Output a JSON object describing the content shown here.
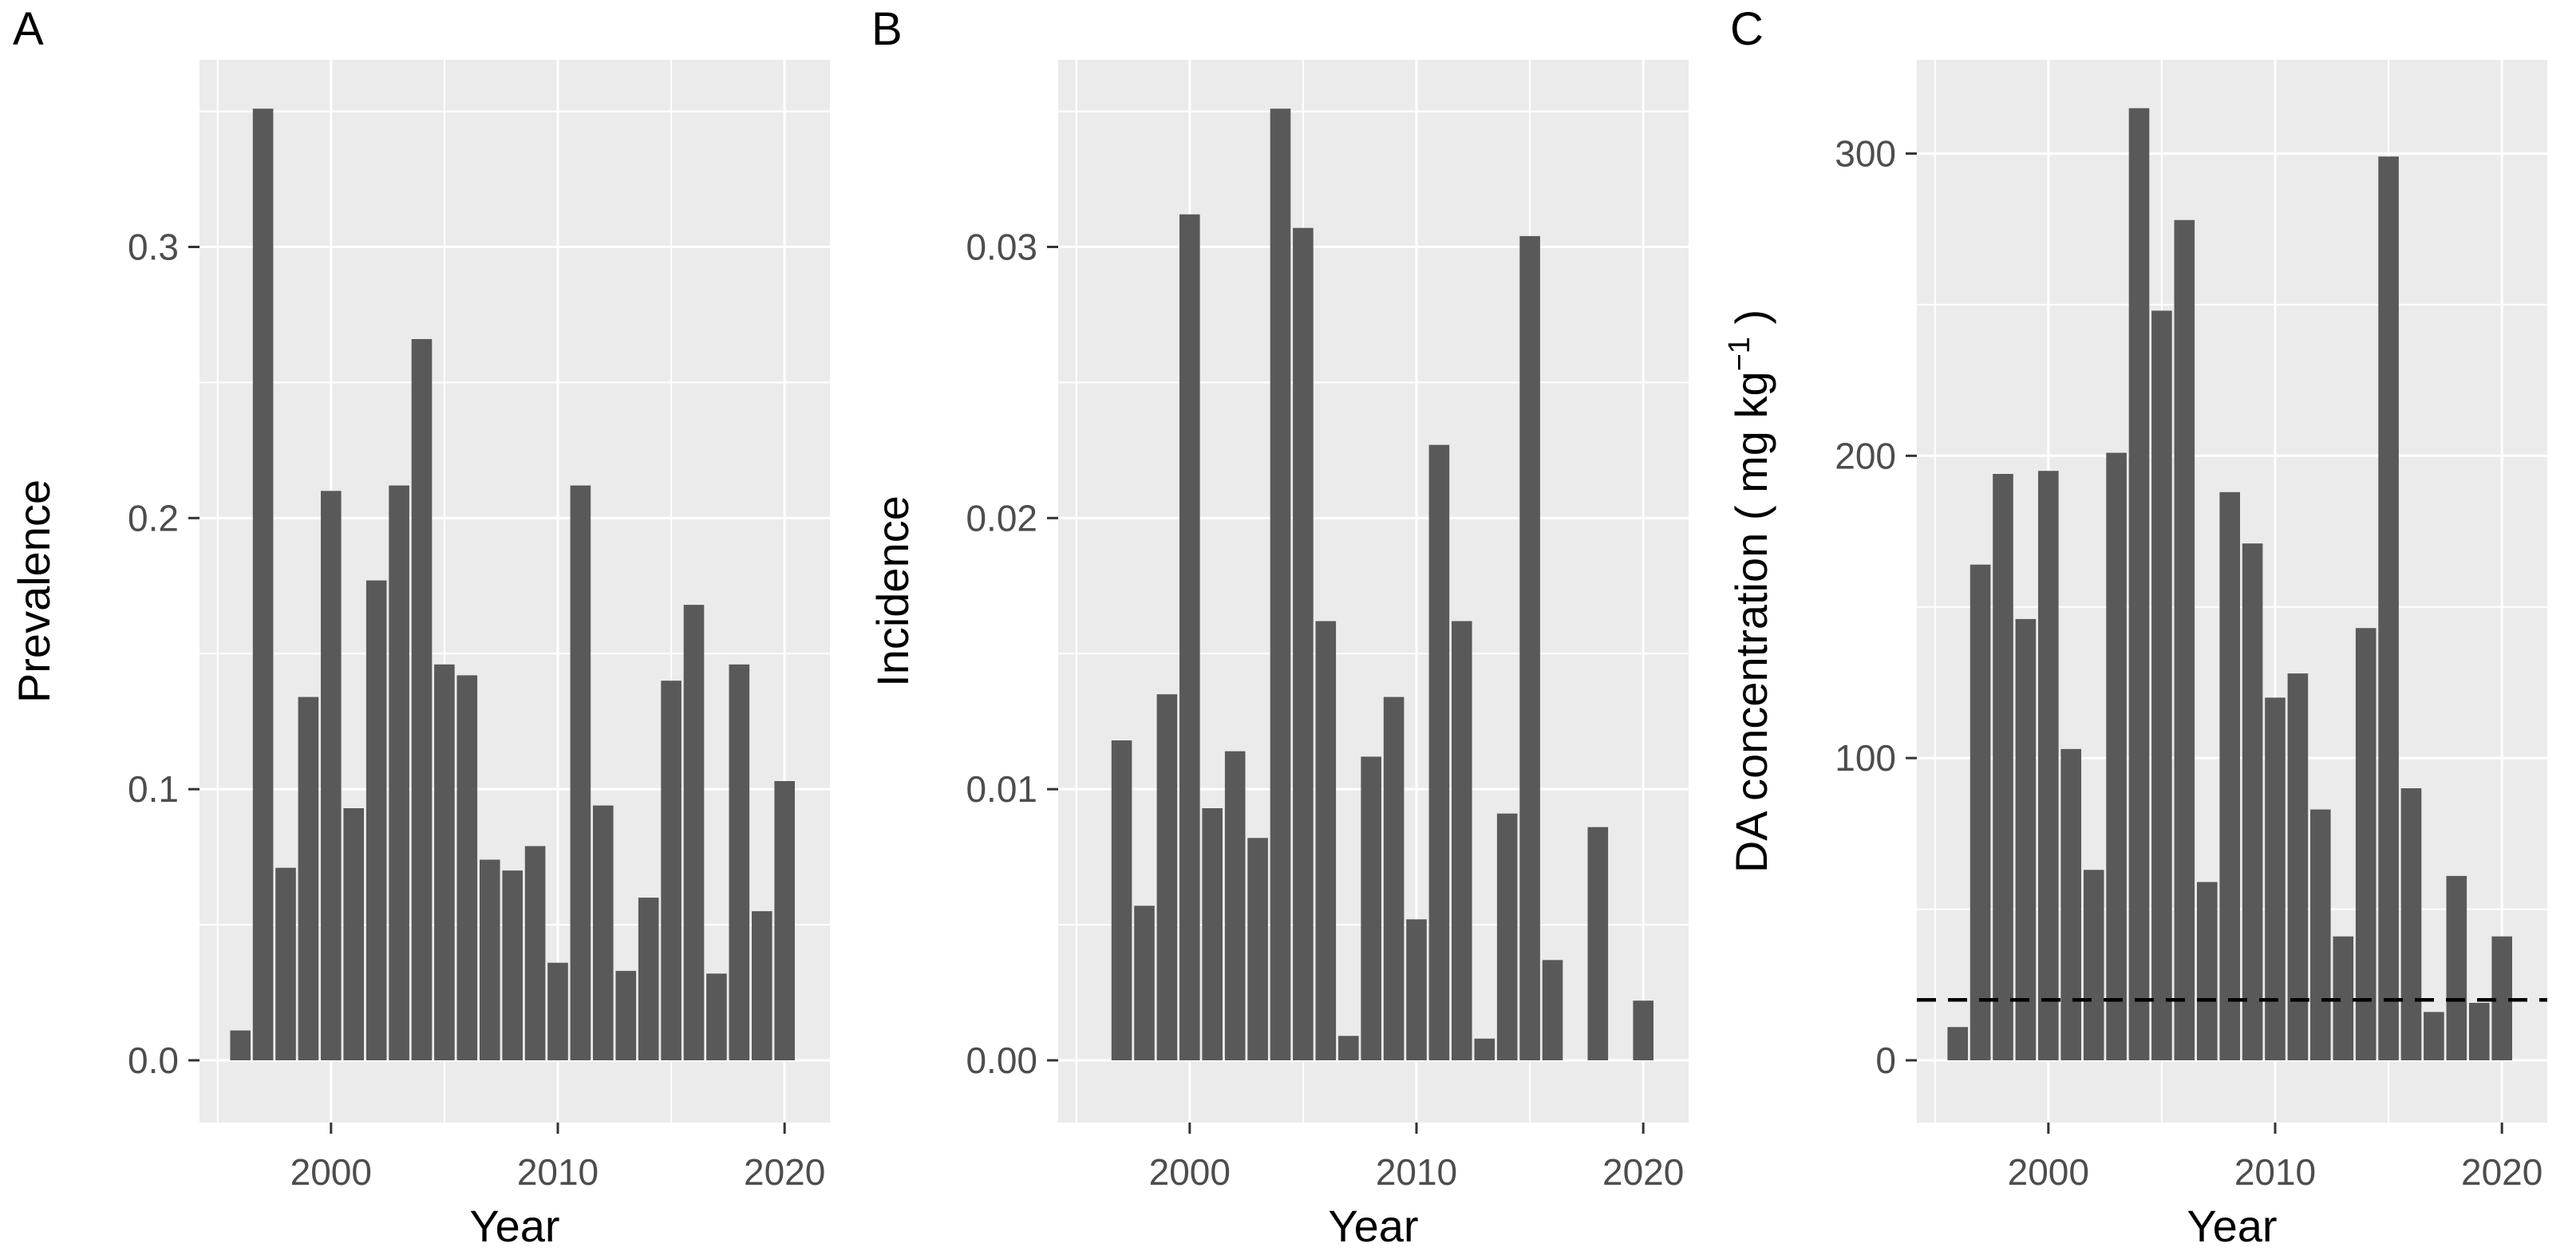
{
  "figure": {
    "background_color": "#FFFFFF",
    "panel_background_color": "#EBEBEB",
    "gridline_color": "#FFFFFF",
    "bar_color": "#595959",
    "axis_text_color": "#4D4D4D",
    "axis_title_color": "#000000",
    "tick_mark_color": "#333333",
    "reference_line_color": "#000000"
  },
  "chart_data": [
    {
      "type": "bar",
      "panel_label": "A",
      "xlabel": "Year",
      "ylabel": "Prevalence",
      "categories": [
        1996,
        1997,
        1998,
        1999,
        2000,
        2001,
        2002,
        2003,
        2004,
        2005,
        2006,
        2007,
        2008,
        2009,
        2010,
        2011,
        2012,
        2013,
        2014,
        2015,
        2016,
        2017,
        2018,
        2019,
        2020
      ],
      "values": [
        0.011,
        0.351,
        0.071,
        0.134,
        0.21,
        0.093,
        0.177,
        0.212,
        0.266,
        0.146,
        0.142,
        0.074,
        0.07,
        0.079,
        0.036,
        0.212,
        0.094,
        0.033,
        0.06,
        0.14,
        0.168,
        0.032,
        0.146,
        0.055,
        0.103
      ],
      "ylim": [
        0,
        0.369
      ],
      "yticks": [
        0,
        0.1,
        0.2,
        0.3
      ],
      "ytick_labels": [
        "0.0",
        "0.1",
        "0.2",
        "0.3"
      ],
      "xticks": [
        2000,
        2010,
        2020
      ],
      "xtick_labels": [
        "2000",
        "2010",
        "2020"
      ],
      "grid": "major-and-minor",
      "legend": "none"
    },
    {
      "type": "bar",
      "panel_label": "B",
      "xlabel": "Year",
      "ylabel": "Incidence",
      "categories": [
        1996,
        1997,
        1998,
        1999,
        2000,
        2001,
        2002,
        2003,
        2004,
        2005,
        2006,
        2007,
        2008,
        2009,
        2010,
        2011,
        2012,
        2013,
        2014,
        2015,
        2016,
        2017,
        2018,
        2019,
        2020
      ],
      "values": [
        null,
        0.0118,
        0.0057,
        0.0135,
        0.0312,
        0.0093,
        0.0114,
        0.0082,
        0.0351,
        0.0307,
        0.0162,
        0.0009,
        0.0112,
        0.0134,
        0.0052,
        0.0227,
        0.0162,
        0.0008,
        0.0091,
        0.0304,
        0.0037,
        null,
        0.0086,
        null,
        0.0022
      ],
      "ylim": [
        0,
        0.0369
      ],
      "yticks": [
        0,
        0.01,
        0.02,
        0.03
      ],
      "ytick_labels": [
        "0.00",
        "0.01",
        "0.02",
        "0.03"
      ],
      "xticks": [
        2000,
        2010,
        2020
      ],
      "xtick_labels": [
        "2000",
        "2010",
        "2020"
      ],
      "grid": "major-and-minor",
      "legend": "none"
    },
    {
      "type": "bar",
      "panel_label": "C",
      "xlabel": "Year",
      "ylabel": "DA concentration ( mg kg⁻¹ )",
      "ylabel_rich": {
        "pre": "DA concentration ( mg kg",
        "sup": "−1",
        "post": " )"
      },
      "categories": [
        1996,
        1997,
        1998,
        1999,
        2000,
        2001,
        2002,
        2003,
        2004,
        2005,
        2006,
        2007,
        2008,
        2009,
        2010,
        2011,
        2012,
        2013,
        2014,
        2015,
        2016,
        2017,
        2018,
        2019,
        2020
      ],
      "values": [
        11,
        164,
        194,
        146,
        195,
        103,
        63,
        201,
        315,
        248,
        278,
        59,
        188,
        171,
        120,
        128,
        83,
        41,
        143,
        299,
        90,
        16,
        61,
        19,
        41
      ],
      "ylim": [
        0,
        331
      ],
      "yticks": [
        0,
        100,
        200,
        300
      ],
      "ytick_labels": [
        "0",
        "100",
        "200",
        "300"
      ],
      "xticks": [
        2000,
        2010,
        2020
      ],
      "xtick_labels": [
        "2000",
        "2010",
        "2020"
      ],
      "reference_line": {
        "y": 20,
        "style": "dashed",
        "color": "#000000"
      },
      "grid": "major-and-minor",
      "legend": "none"
    }
  ]
}
